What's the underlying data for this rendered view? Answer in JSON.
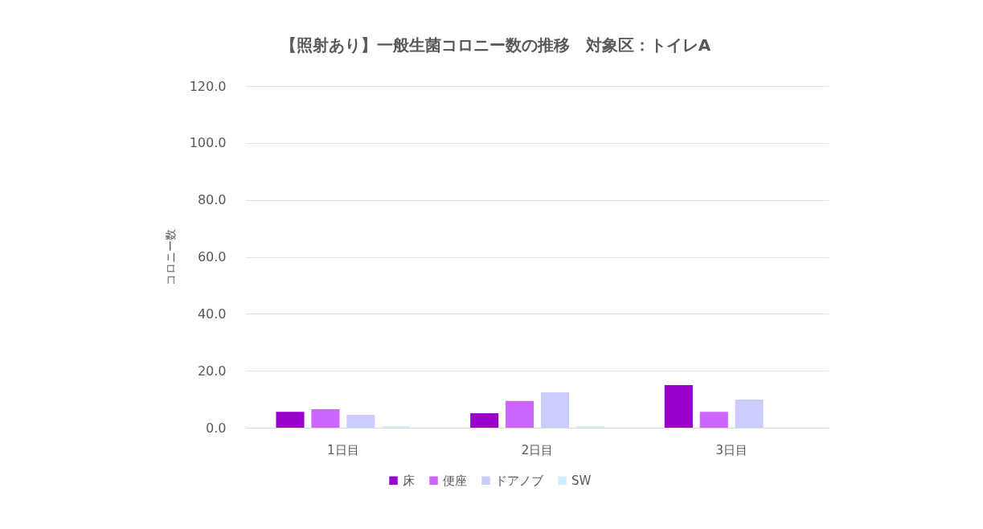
{
  "chart_data": {
    "type": "bar",
    "title": "【照射あり】一般生菌コロニー数の推移　対象区：トイレA",
    "ylabel": "コロニー数",
    "categories": [
      "1日目",
      "2日目",
      "3日目"
    ],
    "series": [
      {
        "name": "床",
        "color": "#9900cc",
        "values": [
          5.6,
          5.1,
          15.0
        ]
      },
      {
        "name": "便座",
        "color": "#cc66ff",
        "values": [
          6.5,
          9.4,
          5.6
        ]
      },
      {
        "name": "ドアノブ",
        "color": "#ccccff",
        "values": [
          4.5,
          12.4,
          9.9
        ]
      },
      {
        "name": "SW",
        "color": "#cceeff",
        "values": [
          0.5,
          0.5,
          null
        ]
      }
    ],
    "ylim": [
      0,
      120
    ],
    "yticks": [
      {
        "value": 0,
        "label": "0.0"
      },
      {
        "value": 20,
        "label": "20.0"
      },
      {
        "value": 40,
        "label": "40.0"
      },
      {
        "value": 60,
        "label": "60.0"
      },
      {
        "value": 80,
        "label": "80.0"
      },
      {
        "value": 100,
        "label": "100.0"
      },
      {
        "value": 120,
        "label": "120.0"
      }
    ],
    "grid": "y",
    "legend": "bottom"
  }
}
